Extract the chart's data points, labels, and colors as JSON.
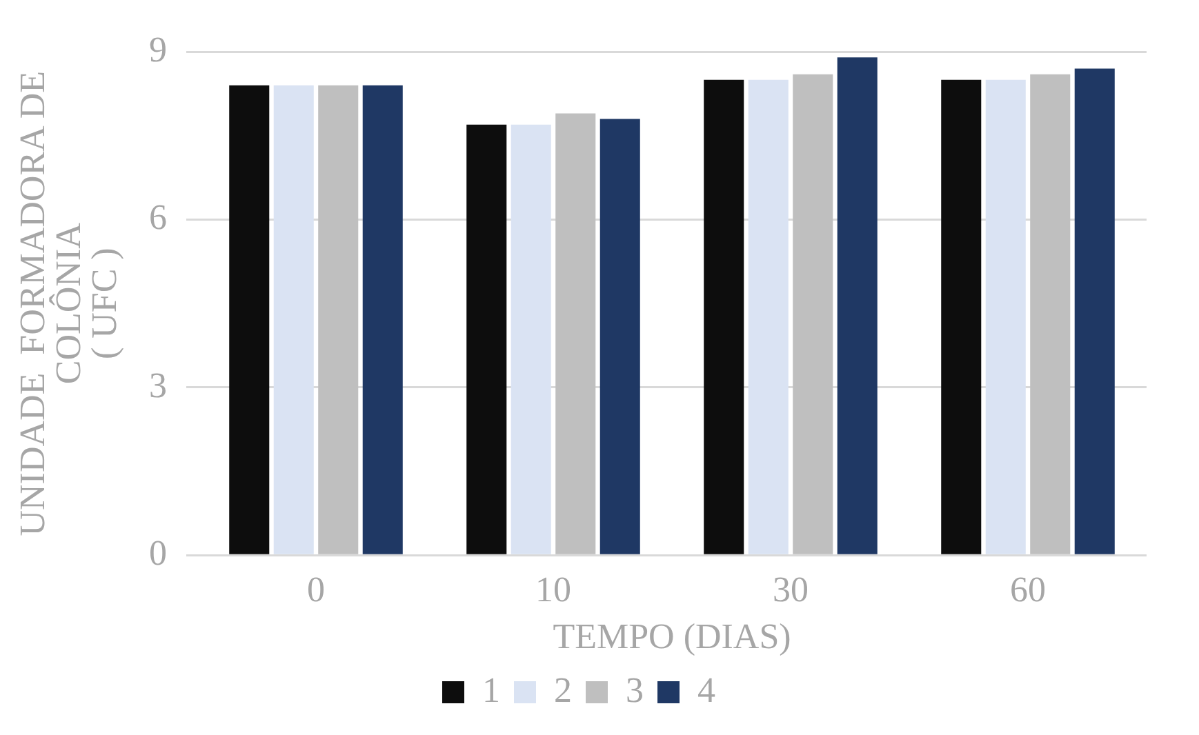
{
  "chart_data": {
    "type": "bar",
    "xlabel": "TEMPO (DIAS)",
    "ylabel": "UNIDADE  FORMADORA DE\nCOLÔNIA\n( UFC )",
    "categories": [
      "0",
      "10",
      "30",
      "60"
    ],
    "series": [
      {
        "name": "1",
        "color": "#0d0d0d",
        "values": [
          8.4,
          7.7,
          8.5,
          8.5
        ]
      },
      {
        "name": "2",
        "color": "#dae3f3",
        "values": [
          8.4,
          7.7,
          8.5,
          8.5
        ]
      },
      {
        "name": "3",
        "color": "#bfbfbf",
        "values": [
          8.4,
          7.9,
          8.6,
          8.6
        ]
      },
      {
        "name": "4",
        "color": "#1f3864",
        "values": [
          8.4,
          7.8,
          8.9,
          8.7
        ]
      }
    ],
    "ylim": [
      0,
      9
    ],
    "yticks": [
      0,
      3,
      6,
      9
    ],
    "grid": "y",
    "legend": "bottom"
  }
}
